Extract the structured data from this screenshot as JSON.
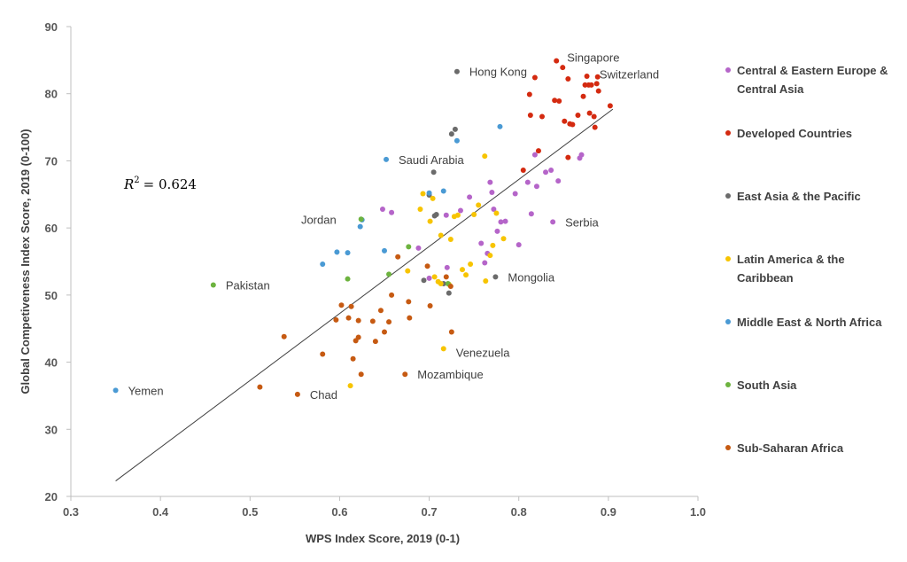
{
  "chart_data": {
    "type": "scatter",
    "title": "",
    "xlabel": "WPS Index Score, 2019 (0-1)",
    "ylabel": "Global Competiveness Index Score, 2019 (0-100)",
    "xlim": [
      0.3,
      1.0
    ],
    "ylim": [
      20,
      90
    ],
    "xticks": [
      "0.3",
      "0.4",
      "0.5",
      "0.6",
      "0.7",
      "0.8",
      "0.9",
      "1.0"
    ],
    "yticks": [
      "20",
      "30",
      "40",
      "50",
      "60",
      "70",
      "80",
      "90"
    ],
    "grid": false,
    "legend_position": "right",
    "r2_prefix": "R",
    "r2_sup": "2",
    "r2_value": "= 0.624",
    "trendline": {
      "x1": 0.35,
      "y1": 22.3,
      "x2": 0.905,
      "y2": 77.7
    },
    "series": [
      {
        "name": "Central & Eastern Europe & Central Asia",
        "legend_lines": [
          "Central & Eastern Europe &",
          "Central Asia"
        ],
        "color": "#b565c9",
        "points": [
          [
            0.648,
            62.8
          ],
          [
            0.658,
            62.3
          ],
          [
            0.688,
            57.0
          ],
          [
            0.7,
            52.5
          ],
          [
            0.719,
            61.9
          ],
          [
            0.72,
            54.1
          ],
          [
            0.735,
            62.6
          ],
          [
            0.745,
            64.6
          ],
          [
            0.758,
            57.7
          ],
          [
            0.762,
            54.8
          ],
          [
            0.765,
            56.2
          ],
          [
            0.768,
            66.8
          ],
          [
            0.77,
            65.3
          ],
          [
            0.772,
            62.8
          ],
          [
            0.776,
            59.5
          ],
          [
            0.78,
            60.9
          ],
          [
            0.785,
            61.0
          ],
          [
            0.796,
            65.1
          ],
          [
            0.8,
            57.5
          ],
          [
            0.81,
            66.8
          ],
          [
            0.814,
            62.1
          ],
          [
            0.818,
            70.9
          ],
          [
            0.82,
            66.2
          ],
          [
            0.83,
            68.3
          ],
          [
            0.836,
            68.6
          ],
          [
            0.838,
            60.9
          ],
          [
            0.844,
            67.0
          ],
          [
            0.868,
            70.4
          ],
          [
            0.87,
            70.9
          ]
        ]
      },
      {
        "name": "Developed Countries",
        "legend_lines": [
          "Developed Countries"
        ],
        "color": "#d42a10",
        "points": [
          [
            0.805,
            68.6
          ],
          [
            0.812,
            79.9
          ],
          [
            0.813,
            76.8
          ],
          [
            0.818,
            82.4
          ],
          [
            0.822,
            71.5
          ],
          [
            0.826,
            76.6
          ],
          [
            0.84,
            79.0
          ],
          [
            0.842,
            84.9
          ],
          [
            0.845,
            78.9
          ],
          [
            0.849,
            83.9
          ],
          [
            0.851,
            75.9
          ],
          [
            0.855,
            82.2
          ],
          [
            0.855,
            70.5
          ],
          [
            0.857,
            75.5
          ],
          [
            0.86,
            75.4
          ],
          [
            0.866,
            76.8
          ],
          [
            0.872,
            79.6
          ],
          [
            0.874,
            81.3
          ],
          [
            0.876,
            82.6
          ],
          [
            0.878,
            81.3
          ],
          [
            0.879,
            77.1
          ],
          [
            0.881,
            81.3
          ],
          [
            0.884,
            76.6
          ],
          [
            0.885,
            75.0
          ],
          [
            0.887,
            81.5
          ],
          [
            0.888,
            82.5
          ],
          [
            0.889,
            80.4
          ],
          [
            0.902,
            78.2
          ]
        ]
      },
      {
        "name": "East Asia & the Pacific",
        "legend_lines": [
          "East Asia & the Pacific"
        ],
        "color": "#6b6b6b",
        "points": [
          [
            0.731,
            83.3
          ],
          [
            0.729,
            74.7
          ],
          [
            0.725,
            74.0
          ],
          [
            0.705,
            68.3
          ],
          [
            0.7,
            64.9
          ],
          [
            0.706,
            61.8
          ],
          [
            0.708,
            62.0
          ],
          [
            0.694,
            52.2
          ],
          [
            0.716,
            51.7
          ],
          [
            0.722,
            50.3
          ],
          [
            0.774,
            52.7
          ]
        ]
      },
      {
        "name": "Latin America & the Caribbean",
        "legend_lines": [
          "Latin America & the",
          "Caribbean"
        ],
        "color": "#f7c400",
        "points": [
          [
            0.612,
            36.5
          ],
          [
            0.676,
            53.6
          ],
          [
            0.69,
            62.8
          ],
          [
            0.693,
            65.1
          ],
          [
            0.701,
            61.0
          ],
          [
            0.704,
            64.4
          ],
          [
            0.706,
            52.7
          ],
          [
            0.71,
            52.0
          ],
          [
            0.713,
            58.9
          ],
          [
            0.713,
            51.7
          ],
          [
            0.716,
            42.0
          ],
          [
            0.722,
            51.6
          ],
          [
            0.724,
            58.3
          ],
          [
            0.728,
            61.7
          ],
          [
            0.732,
            61.9
          ],
          [
            0.737,
            53.8
          ],
          [
            0.741,
            53.0
          ],
          [
            0.746,
            54.6
          ],
          [
            0.75,
            62.0
          ],
          [
            0.755,
            63.4
          ],
          [
            0.762,
            70.7
          ],
          [
            0.763,
            52.1
          ],
          [
            0.768,
            55.9
          ],
          [
            0.771,
            57.4
          ],
          [
            0.775,
            62.2
          ],
          [
            0.783,
            58.4
          ]
        ]
      },
      {
        "name": "Middle East & North Africa",
        "legend_lines": [
          "Middle East & North Africa"
        ],
        "color": "#4a9ad4",
        "points": [
          [
            0.35,
            35.8
          ],
          [
            0.581,
            54.6
          ],
          [
            0.597,
            56.4
          ],
          [
            0.609,
            56.3
          ],
          [
            0.623,
            60.2
          ],
          [
            0.625,
            61.2
          ],
          [
            0.65,
            56.6
          ],
          [
            0.652,
            70.2
          ],
          [
            0.7,
            65.2
          ],
          [
            0.716,
            65.5
          ],
          [
            0.731,
            73.0
          ],
          [
            0.779,
            75.1
          ]
        ]
      },
      {
        "name": "South Asia",
        "legend_lines": [
          "South Asia"
        ],
        "color": "#6db33f",
        "points": [
          [
            0.459,
            51.5
          ],
          [
            0.609,
            52.4
          ],
          [
            0.624,
            61.3
          ],
          [
            0.655,
            53.1
          ],
          [
            0.677,
            57.2
          ],
          [
            0.721,
            51.7
          ]
        ]
      },
      {
        "name": "Sub-Saharan Africa",
        "legend_lines": [
          "Sub-Saharan Africa"
        ],
        "color": "#c65a12",
        "points": [
          [
            0.511,
            36.3
          ],
          [
            0.538,
            43.8
          ],
          [
            0.553,
            35.2
          ],
          [
            0.581,
            41.2
          ],
          [
            0.596,
            46.3
          ],
          [
            0.602,
            48.5
          ],
          [
            0.61,
            46.6
          ],
          [
            0.613,
            48.3
          ],
          [
            0.615,
            40.5
          ],
          [
            0.618,
            43.2
          ],
          [
            0.621,
            43.7
          ],
          [
            0.621,
            46.2
          ],
          [
            0.624,
            38.2
          ],
          [
            0.637,
            46.1
          ],
          [
            0.64,
            43.1
          ],
          [
            0.646,
            47.7
          ],
          [
            0.65,
            44.5
          ],
          [
            0.655,
            46.0
          ],
          [
            0.658,
            50.0
          ],
          [
            0.665,
            55.7
          ],
          [
            0.673,
            38.2
          ],
          [
            0.677,
            49.0
          ],
          [
            0.678,
            46.6
          ],
          [
            0.698,
            54.3
          ],
          [
            0.701,
            48.4
          ],
          [
            0.719,
            52.7
          ],
          [
            0.724,
            51.3
          ],
          [
            0.725,
            44.5
          ]
        ]
      }
    ],
    "annotations": [
      {
        "text": "Singapore",
        "x": 0.842,
        "y": 84.9
      },
      {
        "text": "Switzerland",
        "x": 0.902,
        "y": 82.3
      },
      {
        "text": "Hong Kong",
        "x": 0.731,
        "y": 83.3
      },
      {
        "text": "Saudi Arabia",
        "x": 0.652,
        "y": 70.2
      },
      {
        "text": "Jordan",
        "x": 0.624,
        "y": 61.3
      },
      {
        "text": "Serbia",
        "x": 0.838,
        "y": 60.9
      },
      {
        "text": "Mongolia",
        "x": 0.774,
        "y": 52.7
      },
      {
        "text": "Pakistan",
        "x": 0.459,
        "y": 51.5
      },
      {
        "text": "Venezuela",
        "x": 0.716,
        "y": 42.0
      },
      {
        "text": "Mozambique",
        "x": 0.673,
        "y": 38.2
      },
      {
        "text": "Yemen",
        "x": 0.35,
        "y": 35.8
      },
      {
        "text": "Chad",
        "x": 0.553,
        "y": 35.2
      }
    ]
  }
}
